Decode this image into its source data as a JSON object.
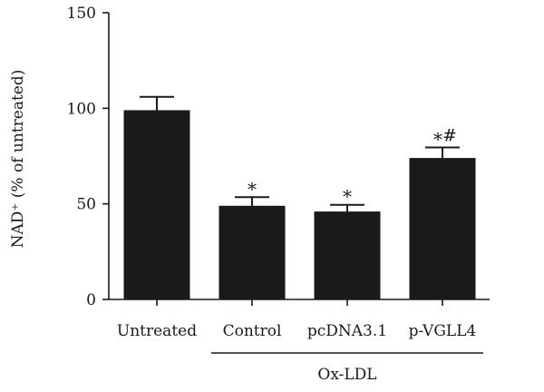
{
  "chart_data": {
    "type": "bar",
    "categories": [
      "Untreated",
      "Control",
      "pcDNA3.1",
      "p-VGLL4"
    ],
    "values": [
      99,
      49,
      46,
      74
    ],
    "errors": [
      7,
      4.5,
      3.5,
      5.5
    ],
    "annotations": [
      {
        "category": "Control",
        "marks": [
          "*"
        ]
      },
      {
        "category": "pcDNA3.1",
        "marks": [
          "*"
        ]
      },
      {
        "category": "p-VGLL4",
        "marks": [
          "*",
          "#"
        ]
      }
    ],
    "ylabel": "NAD⁺ (% of untreated)",
    "xlabel": "",
    "ylim": [
      0,
      150
    ],
    "yticks": [
      0,
      50,
      100,
      150
    ],
    "group_label": {
      "text": "Ox-LDL",
      "categories": [
        "Control",
        "pcDNA3.1",
        "p-VGLL4"
      ]
    },
    "colors": {
      "bar": "#1a1a1a",
      "axis": "#1a1a1a"
    },
    "grid": false
  }
}
